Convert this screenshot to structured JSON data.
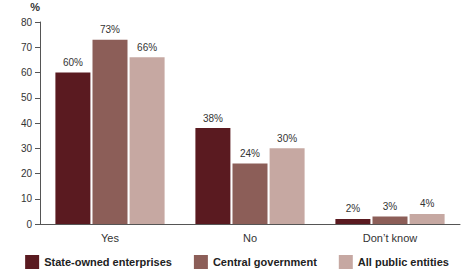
{
  "chart_data": {
    "type": "bar",
    "y_label": "%",
    "categories": [
      "Yes",
      "No",
      "Don’t know"
    ],
    "series": [
      {
        "name": "State-owned enterprises",
        "color": "#5a1a20",
        "values": [
          60,
          38,
          2
        ],
        "value_labels": [
          "60%",
          "38%",
          "2%"
        ]
      },
      {
        "name": "Central government",
        "color": "#8c5e58",
        "values": [
          73,
          24,
          3
        ],
        "value_labels": [
          "73%",
          "24%",
          "3%"
        ]
      },
      {
        "name": "All public entities",
        "color": "#c6a8a2",
        "values": [
          66,
          30,
          4
        ],
        "value_labels": [
          "66%",
          "30%",
          "4%"
        ]
      }
    ],
    "ylim": [
      0,
      80
    ],
    "yticks": [
      0,
      10,
      20,
      30,
      40,
      50,
      60,
      70,
      80
    ],
    "grid": false,
    "legend": "bottom",
    "data_labels": true
  }
}
